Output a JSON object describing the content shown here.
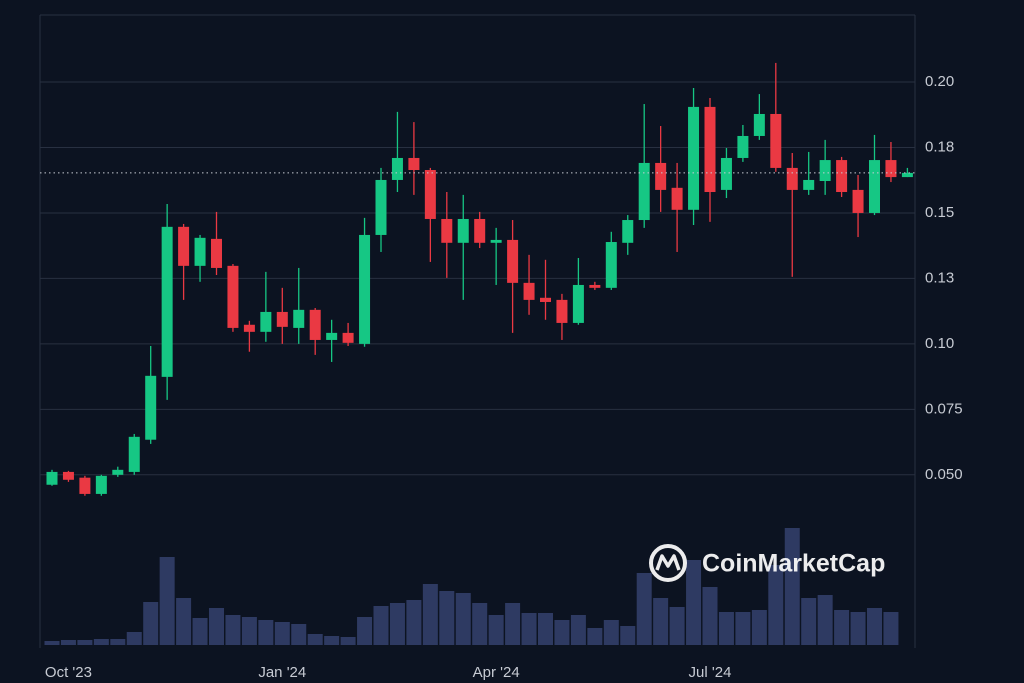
{
  "chart_data": {
    "type": "candlestick",
    "watermark": "CoinMarketCap",
    "categories": [
      null,
      "Oct '23",
      null,
      null,
      null,
      null,
      null,
      null,
      null,
      null,
      null,
      null,
      null,
      null,
      "Jan '24",
      null,
      null,
      null,
      null,
      null,
      null,
      null,
      null,
      null,
      null,
      null,
      null,
      "Apr '24",
      null,
      null,
      null,
      null,
      null,
      null,
      null,
      null,
      null,
      null,
      null,
      null,
      "Jul '24",
      null,
      null,
      null,
      null,
      null,
      null,
      null,
      null,
      null,
      null,
      null,
      null
    ],
    "open": [
      0.0462,
      0.0511,
      0.0489,
      0.0427,
      0.05,
      0.0511,
      0.0634,
      0.0874,
      0.1447,
      0.1298,
      0.1401,
      0.1298,
      0.1073,
      0.1046,
      0.1122,
      0.1061,
      0.113,
      0.1015,
      0.1042,
      0.1,
      0.1416,
      0.1626,
      0.171,
      0.1664,
      0.1477,
      0.1386,
      0.1477,
      0.1386,
      0.1397,
      0.1233,
      0.1176,
      0.1168,
      0.108,
      0.1225,
      0.1214,
      0.1386,
      0.1473,
      0.1691,
      0.1596,
      0.1512,
      0.1905,
      0.1588,
      0.171,
      0.1794,
      0.1878,
      0.1672,
      0.1588,
      0.1622,
      0.1702,
      0.1588,
      0.15,
      0.1702,
      0.1637
    ],
    "high": [
      0.0519,
      0.0515,
      0.0496,
      0.05,
      0.0531,
      0.0656,
      0.0992,
      0.1534,
      0.1458,
      0.1416,
      0.1504,
      0.1305,
      0.1088,
      0.1275,
      0.1214,
      0.129,
      0.1137,
      0.1092,
      0.108,
      0.1481,
      0.1672,
      0.1886,
      0.1847,
      0.1672,
      0.158,
      0.1569,
      0.1504,
      0.1443,
      0.1473,
      0.134,
      0.1321,
      0.1191,
      0.1328,
      0.1237,
      0.1428,
      0.1492,
      0.1916,
      0.1832,
      0.1691,
      0.1977,
      0.1939,
      0.1748,
      0.1836,
      0.1954,
      0.2073,
      0.1729,
      0.1733,
      0.1779,
      0.1714,
      0.1645,
      0.1798,
      0.1771,
      0.1672
    ],
    "low": [
      0.0458,
      0.0473,
      0.042,
      0.042,
      0.0492,
      0.05,
      0.0618,
      0.0786,
      0.1168,
      0.1237,
      0.1263,
      0.1046,
      0.097,
      0.1008,
      0.1,
      0.1,
      0.0958,
      0.0931,
      0.0992,
      0.0989,
      0.1351,
      0.158,
      0.1569,
      0.1313,
      0.1252,
      0.1168,
      0.1366,
      0.1225,
      0.1042,
      0.1111,
      0.1092,
      0.1015,
      0.1073,
      0.1206,
      0.1206,
      0.134,
      0.1443,
      0.1504,
      0.1351,
      0.1454,
      0.1466,
      0.1557,
      0.1695,
      0.1779,
      0.1657,
      0.1256,
      0.1569,
      0.1569,
      0.1561,
      0.1408,
      0.1492,
      0.1618,
      0.1637
    ],
    "close": [
      0.0511,
      0.0481,
      0.0427,
      0.0496,
      0.0519,
      0.0645,
      0.0878,
      0.1447,
      0.1298,
      0.1405,
      0.129,
      0.1061,
      0.1046,
      0.1122,
      0.1065,
      0.113,
      0.1015,
      0.1042,
      0.1004,
      0.1416,
      0.1626,
      0.171,
      0.1664,
      0.1477,
      0.1386,
      0.1477,
      0.1386,
      0.1397,
      0.1233,
      0.1168,
      0.116,
      0.108,
      0.1225,
      0.1214,
      0.1389,
      0.1473,
      0.1691,
      0.1588,
      0.1512,
      0.1905,
      0.158,
      0.171,
      0.1794,
      0.1878,
      0.1672,
      0.1588,
      0.1626,
      0.1702,
      0.158,
      0.15,
      0.1702,
      0.1637,
      0.1653
    ],
    "volume": [
      4,
      5,
      5,
      6,
      6,
      13,
      43,
      88,
      47,
      27,
      37,
      30,
      28,
      25,
      23,
      21,
      11,
      9,
      8,
      28,
      39,
      42,
      45,
      61,
      54,
      52,
      42,
      30,
      42,
      32,
      32,
      25,
      30,
      17,
      25,
      19,
      72,
      47,
      38,
      85,
      58,
      33,
      33,
      35,
      80,
      117,
      47,
      50,
      35,
      33,
      37,
      33,
      null
    ],
    "vlim": [
      0,
      120
    ],
    "ylim": [
      -0.015,
      0.2256
    ],
    "yticks": [
      {
        "value": 0.05,
        "label": "0.050"
      },
      0.075,
      {
        "value": 0.1,
        "label": "0.10"
      },
      {
        "value": 0.125,
        "label": "0.13"
      },
      0.15,
      {
        "value": 0.175,
        "label": "0.18"
      },
      {
        "value": 0.2,
        "label": "0.20"
      }
    ],
    "grid": true,
    "up_color": "#16c784",
    "down_color": "#ea3943",
    "volume_color": "#2e3a62"
  }
}
